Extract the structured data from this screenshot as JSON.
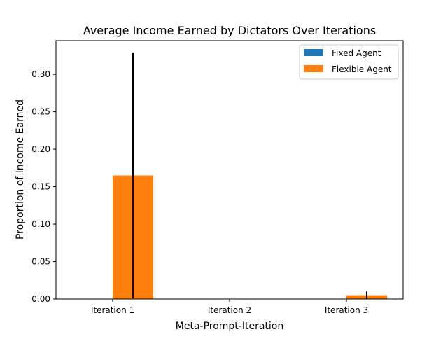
{
  "chart_data": {
    "type": "bar",
    "title": "Average Income Earned by Dictators Over Iterations",
    "xlabel": "Meta-Prompt-Iteration",
    "ylabel": "Proportion of Income Earned",
    "categories": [
      "Iteration 1",
      "Iteration 2",
      "Iteration 3"
    ],
    "series": [
      {
        "name": "Fixed Agent",
        "color": "#1f77b4",
        "values": [
          0.0,
          0.0,
          0.0
        ],
        "errors": [
          0.0,
          0.0,
          0.0
        ]
      },
      {
        "name": "Flexible Agent",
        "color": "#ff7f0e",
        "values": [
          0.165,
          0.0,
          0.005
        ],
        "errors": [
          0.164,
          0.0,
          0.005
        ]
      }
    ],
    "ylim": [
      0,
      0.345
    ],
    "yticks": [
      0.0,
      0.05,
      0.1,
      0.15,
      0.2,
      0.25,
      0.3
    ],
    "ytick_labels": [
      "0.00",
      "0.05",
      "0.10",
      "0.15",
      "0.20",
      "0.25",
      "0.30"
    ],
    "grid": false,
    "legend_position": "top-right"
  }
}
